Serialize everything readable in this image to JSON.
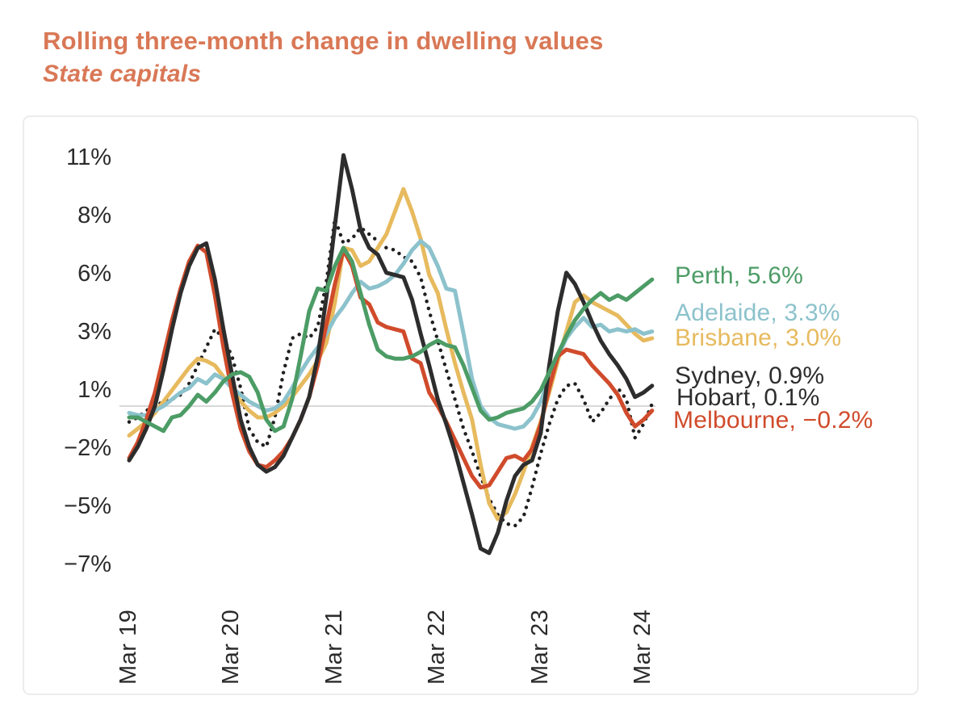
{
  "header": {
    "title_color": "#d97856"
  },
  "chart_data": {
    "type": "line",
    "title": "Rolling three-month change in dwelling values",
    "subtitle": "State capitals",
    "x_unit": "monthly, Mar 2019 to Apr 2024",
    "grid": "zero line only",
    "legend_position": "right, at line ends",
    "ylim": [
      -7.8,
      12.2
    ],
    "yticks": [
      {
        "label": "11%",
        "value": 11
      },
      {
        "label": "8%",
        "value": 8
      },
      {
        "label": "6%",
        "value": 6
      },
      {
        "label": "3%",
        "value": 3
      },
      {
        "label": "1%",
        "value": 1
      },
      {
        "label": "−2%",
        "value": -2
      },
      {
        "label": "−5%",
        "value": -5
      },
      {
        "label": "−7%",
        "value": -7
      }
    ],
    "xticks": [
      {
        "label": "Mar 19",
        "month_index": 0
      },
      {
        "label": "Mar 20",
        "month_index": 12
      },
      {
        "label": "Mar 21",
        "month_index": 24
      },
      {
        "label": "Mar 22",
        "month_index": 36
      },
      {
        "label": "Mar 23",
        "month_index": 48
      },
      {
        "label": "Mar 24",
        "month_index": 60
      }
    ],
    "series": [
      {
        "name": "Hobart",
        "color": "#1f1f1f",
        "style": "dotted",
        "width": 4.5,
        "dash": "0 9",
        "end_value": 0.1,
        "values": [
          -0.7,
          -0.5,
          -0.2,
          0.0,
          0.2,
          0.3,
          0.5,
          1.0,
          1.8,
          2.6,
          3.4,
          3.0,
          2.2,
          0.8,
          -1.0,
          -1.6,
          -1.8,
          -0.5,
          1.5,
          3.0,
          3.2,
          3.0,
          3.5,
          5.5,
          8.3,
          7.2,
          7.4,
          7.9,
          7.6,
          7.3,
          7.0,
          6.9,
          6.6,
          6.4,
          5.7,
          4.2,
          2.9,
          1.6,
          0.3,
          -1.0,
          -2.0,
          -3.1,
          -4.1,
          -4.8,
          -5.2,
          -5.3,
          -4.9,
          -3.6,
          -2.1,
          -0.8,
          0.3,
          0.9,
          1.0,
          0.3,
          -0.7,
          -0.3,
          0.3,
          0.8,
          0.3,
          -1.4,
          -0.8,
          0.1
        ]
      },
      {
        "name": "Brisbane",
        "color": "#e7ba5e",
        "style": "solid",
        "width": 5,
        "dash": "",
        "end_value": 3.0,
        "values": [
          -1.3,
          -1.0,
          -0.7,
          -0.3,
          0.2,
          0.7,
          1.2,
          1.7,
          2.1,
          2.0,
          1.8,
          1.3,
          0.8,
          0.2,
          -0.2,
          -0.5,
          -0.5,
          -0.3,
          0.0,
          0.4,
          0.9,
          1.4,
          2.0,
          2.8,
          4.6,
          7.0,
          6.9,
          6.2,
          6.4,
          7.0,
          7.6,
          8.6,
          9.6,
          8.6,
          7.4,
          5.8,
          5.0,
          3.4,
          1.9,
          0.6,
          -0.6,
          -2.6,
          -4.3,
          -5.0,
          -4.7,
          -3.9,
          -2.9,
          -1.8,
          -0.7,
          0.6,
          2.0,
          3.3,
          4.6,
          4.9,
          4.6,
          4.4,
          4.2,
          4.0,
          3.6,
          3.2,
          2.9,
          3.0
        ]
      },
      {
        "name": "Adelaide",
        "color": "#8cc2cc",
        "style": "solid",
        "width": 5,
        "dash": "",
        "end_value": 3.3,
        "values": [
          -0.3,
          -0.4,
          -0.4,
          -0.2,
          0.0,
          0.3,
          0.6,
          0.8,
          1.2,
          1.0,
          1.4,
          1.2,
          0.8,
          0.5,
          0.2,
          0.0,
          -0.2,
          -0.1,
          0.2,
          0.8,
          1.5,
          2.1,
          2.6,
          3.2,
          3.9,
          4.4,
          5.0,
          5.5,
          5.2,
          5.3,
          5.5,
          5.8,
          6.3,
          6.9,
          7.3,
          7.0,
          6.2,
          5.2,
          5.1,
          3.2,
          1.2,
          0.0,
          -0.5,
          -0.8,
          -0.9,
          -1.0,
          -0.9,
          -0.5,
          0.2,
          1.2,
          2.2,
          3.0,
          3.5,
          3.9,
          3.5,
          3.6,
          3.3,
          3.4,
          3.3,
          3.4,
          3.2,
          3.3
        ]
      },
      {
        "name": "Melbourne",
        "color": "#d04b2b",
        "style": "solid",
        "width": 5,
        "dash": "",
        "end_value": -0.2,
        "values": [
          -2.3,
          -1.6,
          -0.6,
          0.6,
          2.2,
          3.8,
          5.2,
          6.4,
          7.1,
          6.8,
          4.9,
          2.6,
          0.6,
          -1.0,
          -2.0,
          -2.6,
          -2.7,
          -2.4,
          -2.0,
          -1.4,
          -0.6,
          0.4,
          1.8,
          3.6,
          5.4,
          6.9,
          6.2,
          4.8,
          4.5,
          3.7,
          3.5,
          3.4,
          3.3,
          2.1,
          1.9,
          0.6,
          0.0,
          -0.7,
          -1.5,
          -2.3,
          -3.1,
          -3.6,
          -3.5,
          -2.9,
          -2.3,
          -2.2,
          -2.4,
          -1.9,
          -0.8,
          0.8,
          2.2,
          2.5,
          2.4,
          2.3,
          1.8,
          1.4,
          1.0,
          0.5,
          -0.3,
          -0.9,
          -0.6,
          -0.2
        ]
      },
      {
        "name": "Sydney",
        "color": "#2d2d2d",
        "style": "solid",
        "width": 5,
        "dash": "",
        "end_value": 0.9,
        "values": [
          -2.4,
          -1.8,
          -1.0,
          0.0,
          1.6,
          3.4,
          5.0,
          6.2,
          7.0,
          7.2,
          5.6,
          3.4,
          1.4,
          -0.6,
          -1.8,
          -2.6,
          -2.9,
          -2.7,
          -2.2,
          -1.4,
          -0.6,
          0.4,
          2.2,
          4.8,
          8.0,
          11.1,
          9.6,
          7.8,
          7.0,
          6.7,
          5.9,
          5.8,
          5.7,
          4.7,
          3.2,
          1.8,
          0.3,
          -0.8,
          -2.0,
          -3.4,
          -4.8,
          -6.3,
          -6.5,
          -5.6,
          -4.2,
          -3.1,
          -2.6,
          -2.4,
          -1.2,
          1.8,
          4.2,
          5.9,
          5.4,
          4.6,
          3.7,
          2.9,
          2.3,
          1.8,
          1.2,
          0.4,
          0.6,
          0.9
        ]
      },
      {
        "name": "Perth",
        "color": "#4c9c66",
        "style": "solid",
        "width": 5,
        "dash": "",
        "end_value": 5.6,
        "values": [
          -0.5,
          -0.5,
          -0.7,
          -0.9,
          -1.1,
          -0.5,
          -0.4,
          0.0,
          0.5,
          0.2,
          0.6,
          1.1,
          1.4,
          1.5,
          1.3,
          0.6,
          -0.6,
          -1.1,
          -0.9,
          0.3,
          2.2,
          4.2,
          5.2,
          5.1,
          6.2,
          7.0,
          6.4,
          5.0,
          3.6,
          2.5,
          2.2,
          2.1,
          2.1,
          2.2,
          2.4,
          2.7,
          2.9,
          2.7,
          2.6,
          1.8,
          0.8,
          -0.2,
          -0.6,
          -0.5,
          -0.3,
          -0.2,
          -0.1,
          0.2,
          0.7,
          1.5,
          2.3,
          3.1,
          3.8,
          4.3,
          4.7,
          5.0,
          4.7,
          4.9,
          4.7,
          5.0,
          5.3,
          5.6
        ]
      }
    ]
  },
  "legend": {
    "items": [
      {
        "label": "Perth, 5.6%",
        "color": "#4c9c66"
      },
      {
        "label": "Adelaide, 3.3%",
        "color": "#8cc2cc"
      },
      {
        "label": "Brisbane, 3.0%",
        "color": "#e7ba5e"
      },
      {
        "label": "Sydney, 0.9%",
        "color": "#2d2d2d"
      },
      {
        "label": "Hobart, 0.1%",
        "color": "#2d2d2d"
      },
      {
        "label": "Melbourne, −0.2%",
        "color": "#d04b2b"
      }
    ]
  }
}
